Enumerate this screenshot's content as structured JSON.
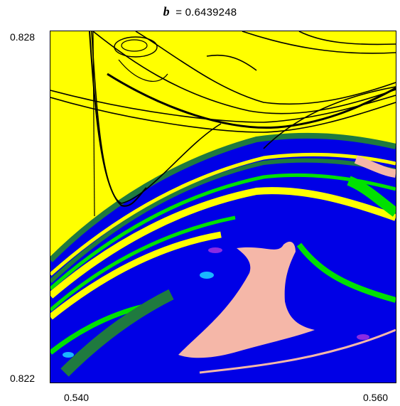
{
  "chart_data": {
    "type": "heatmap",
    "title": {
      "param_symbol": "b",
      "equals": "=",
      "param_value": "0.6439248"
    },
    "x_ticks": [
      "0.540",
      "0.560"
    ],
    "y_ticks": [
      "0.828",
      "0.822"
    ],
    "xlim": [
      0.54,
      0.56
    ],
    "ylim": [
      0.822,
      0.828
    ],
    "grid": false,
    "colors": {
      "background": "#ffff00",
      "curves": "#000000",
      "band_dark_green": "#1f7a3f",
      "band_blue": "#0000e6",
      "band_green": "#00e100",
      "band_pink": "#f5b7a8",
      "band_purple": "#8a2be2",
      "band_cyan": "#19b7ff"
    }
  }
}
